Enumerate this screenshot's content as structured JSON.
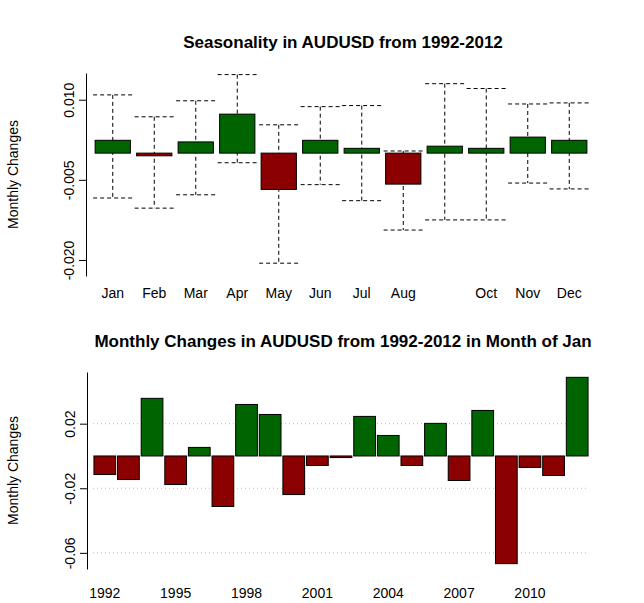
{
  "chart_data": [
    {
      "type": "bar",
      "title": "Seasonality in AUDUSD from 1992-2012",
      "y_label": "Monthly Changes",
      "categories": [
        "Jan",
        "Feb",
        "Mar",
        "Apr",
        "May",
        "Jun",
        "Jul",
        "Aug",
        null,
        "Oct",
        "Nov",
        "Dec"
      ],
      "values": [
        0.0024,
        -0.0005,
        0.0021,
        0.0073,
        -0.0068,
        0.0024,
        0.0009,
        -0.0058,
        0.0013,
        0.0009,
        0.003,
        0.0024
      ],
      "high": [
        0.0109,
        0.0068,
        0.0098,
        0.0147,
        0.0053,
        0.0087,
        0.0089,
        0.0004,
        0.013,
        0.0121,
        0.0092,
        0.0094
      ],
      "low": [
        -0.0084,
        -0.0103,
        -0.0078,
        -0.0018,
        -0.0206,
        -0.0059,
        -0.0089,
        -0.0144,
        -0.0125,
        -0.0125,
        -0.0056,
        -0.0067
      ],
      "colors": [
        "#006400",
        "#8b0000",
        "#006400",
        "#006400",
        "#8b0000",
        "#006400",
        "#006400",
        "#8b0000",
        "#006400",
        "#006400",
        "#006400",
        "#006400"
      ],
      "ylim": [
        -0.023,
        0.015
      ],
      "yticks": [
        {
          "value": -0.02,
          "label": "-0.020"
        },
        -0.005,
        {
          "value": 0.01,
          "label": "0.010"
        }
      ],
      "grid": false
    },
    {
      "type": "bar",
      "title": "Monthly Changes in AUDUSD from 1992-2012 in Month of Jan",
      "y_label": "Monthly Changes",
      "categories": [
        "1992",
        null,
        null,
        "1995",
        null,
        null,
        "1998",
        null,
        null,
        "2001",
        null,
        null,
        "2004",
        null,
        null,
        "2007",
        null,
        null,
        "2010",
        null,
        null
      ],
      "values": [
        -0.0115,
        -0.0146,
        0.0357,
        -0.0177,
        0.0053,
        -0.0313,
        0.0319,
        0.0257,
        -0.0239,
        -0.0059,
        -0.001,
        0.0245,
        0.0127,
        -0.0059,
        0.0202,
        -0.0152,
        0.0282,
        -0.0667,
        -0.0071,
        -0.0121,
        0.0487
      ],
      "colors": [
        "#8b0000",
        "#8b0000",
        "#006400",
        "#8b0000",
        "#006400",
        "#8b0000",
        "#006400",
        "#006400",
        "#8b0000",
        "#8b0000",
        "#8b0000",
        "#006400",
        "#006400",
        "#8b0000",
        "#006400",
        "#8b0000",
        "#006400",
        "#8b0000",
        "#8b0000",
        "#8b0000",
        "#006400"
      ],
      "ylim": [
        -0.07,
        0.052
      ],
      "yticks": [
        -0.06,
        -0.02,
        0.02
      ],
      "grid": true
    }
  ]
}
